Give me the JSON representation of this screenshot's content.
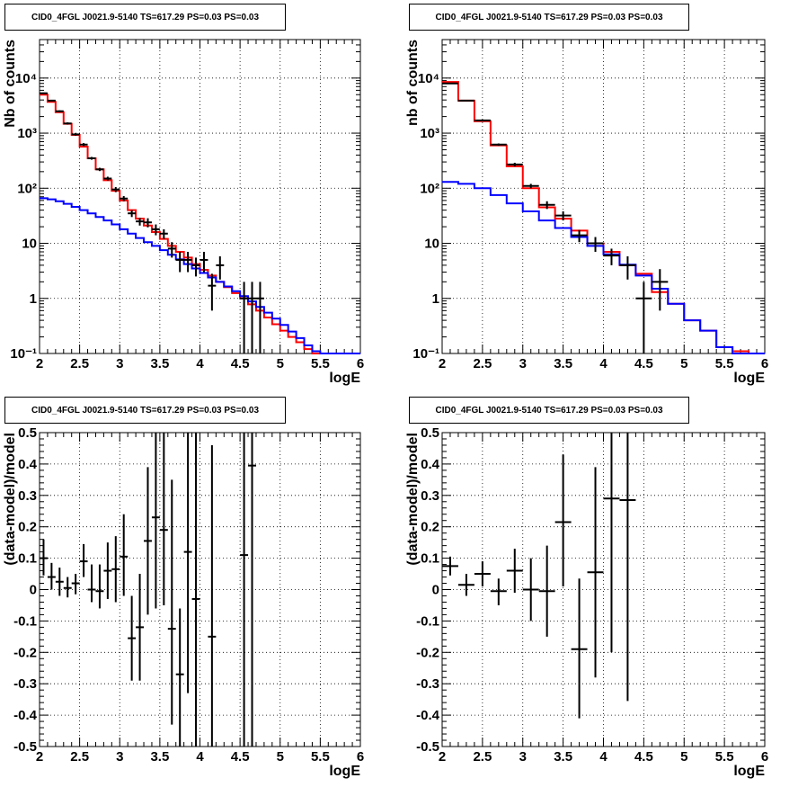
{
  "chart_data": [
    {
      "type": "line",
      "title": "CID0_4FGL J0021.9-5140 TS=617.29 PS=0.03 PS=0.03",
      "xlabel": "logE",
      "ylabel": "Nb of counts",
      "xlim": [
        2,
        6
      ],
      "ylim": [
        0.1,
        50000
      ],
      "yscale": "log",
      "grid": true,
      "x_ticks": [
        "2",
        "2.5",
        "3",
        "3.5",
        "4",
        "4.5",
        "5",
        "5.5",
        "6"
      ],
      "y_ticks": [
        "10⁻¹",
        "1",
        "10",
        "10²",
        "10³",
        "10⁴"
      ],
      "series": [
        {
          "color": "#ff0000",
          "style": "step",
          "bin_width": 0.1,
          "x": [
            2.0,
            2.1,
            2.2,
            2.3,
            2.4,
            2.5,
            2.6,
            2.7,
            2.8,
            2.9,
            3.0,
            3.1,
            3.2,
            3.3,
            3.4,
            3.5,
            3.6,
            3.7,
            3.8,
            3.9,
            4.0,
            4.1,
            4.2,
            4.3,
            4.4,
            4.5,
            4.6,
            4.7,
            4.8,
            4.9,
            5.0,
            5.1,
            5.2,
            5.3,
            5.4,
            5.5,
            5.6,
            5.7,
            5.8,
            5.9
          ],
          "y": [
            5000,
            3700,
            2400,
            1480,
            930,
            570,
            350,
            220,
            140,
            90,
            60,
            40,
            28,
            21,
            16,
            12,
            9,
            7,
            5.5,
            4.2,
            3.3,
            2.6,
            2.0,
            1.6,
            1.25,
            1.0,
            0.78,
            0.6,
            0.45,
            0.34,
            0.26,
            0.2,
            0.16,
            0.12,
            0.1,
            0.1,
            0.1,
            0.1,
            0.1,
            0.1
          ]
        },
        {
          "color": "#0000ff",
          "style": "step",
          "bin_width": 0.1,
          "x": [
            2.0,
            2.1,
            2.2,
            2.3,
            2.4,
            2.5,
            2.6,
            2.7,
            2.8,
            2.9,
            3.0,
            3.1,
            3.2,
            3.3,
            3.4,
            3.5,
            3.6,
            3.7,
            3.8,
            3.9,
            4.0,
            4.1,
            4.2,
            4.3,
            4.4,
            4.5,
            4.6,
            4.7,
            4.8,
            4.9,
            5.0,
            5.1,
            5.2,
            5.3,
            5.4,
            5.5,
            5.6,
            5.7,
            5.8,
            5.9
          ],
          "y": [
            66,
            63,
            58,
            52,
            46,
            40,
            35,
            30,
            26,
            22,
            18,
            15,
            12.5,
            10.5,
            9,
            7.5,
            6.2,
            5.1,
            4.2,
            3.5,
            2.9,
            2.4,
            2.0,
            1.65,
            1.35,
            1.1,
            0.88,
            0.7,
            0.55,
            0.43,
            0.33,
            0.25,
            0.19,
            0.14,
            0.11,
            0.1,
            0.1,
            0.1,
            0.1,
            0.1
          ]
        }
      ],
      "points": {
        "color": "#000000",
        "xerr": 0.05,
        "x": [
          2.05,
          2.15,
          2.25,
          2.35,
          2.45,
          2.55,
          2.65,
          2.75,
          2.85,
          2.95,
          3.05,
          3.15,
          3.25,
          3.35,
          3.45,
          3.55,
          3.65,
          3.75,
          3.85,
          3.95,
          4.05,
          4.15,
          4.25,
          4.55,
          4.65,
          4.75
        ],
        "y": [
          5300,
          3900,
          2500,
          1500,
          950,
          620,
          350,
          220,
          150,
          95,
          65,
          35,
          25,
          24,
          18,
          15,
          8,
          5,
          5,
          4,
          5,
          1.7,
          4,
          1,
          1,
          1
        ],
        "ylo": [
          5150,
          3780,
          2400,
          1430,
          900,
          580,
          330,
          205,
          138,
          85,
          58,
          30,
          21,
          19.5,
          14,
          12,
          5.5,
          3,
          3,
          2.5,
          3,
          0.6,
          2.2,
          0.1,
          0.1,
          0.1
        ],
        "yhi": [
          5450,
          4020,
          2600,
          1570,
          1000,
          660,
          370,
          235,
          162,
          105,
          72,
          40,
          29,
          28.5,
          22,
          18,
          10.5,
          7,
          7,
          5.5,
          7,
          2.8,
          5.8,
          2.0,
          2.0,
          2.0
        ]
      }
    },
    {
      "type": "line",
      "title": "CID0_4FGL J0021.9-5140 TS=617.29 PS=0.03 PS=0.03",
      "xlabel": "logE",
      "ylabel": "nb of counts",
      "xlim": [
        2,
        6
      ],
      "ylim": [
        0.1,
        50000
      ],
      "yscale": "log",
      "grid": true,
      "x_ticks": [
        "2",
        "2.5",
        "3",
        "3.5",
        "4",
        "4.5",
        "5",
        "5.5",
        "6"
      ],
      "y_ticks": [
        "10⁻¹",
        "1",
        "10",
        "10²",
        "10³",
        "10⁴"
      ],
      "series": [
        {
          "color": "#ff0000",
          "style": "step",
          "bin_width": 0.2,
          "x": [
            2.0,
            2.2,
            2.4,
            2.6,
            2.8,
            3.0,
            3.2,
            3.4,
            3.6,
            3.8,
            4.0,
            4.2,
            4.4,
            4.6,
            4.8,
            5.0,
            5.2,
            5.4,
            5.6,
            5.8
          ],
          "y": [
            8500,
            3900,
            1650,
            600,
            250,
            100,
            45,
            28,
            17,
            10,
            7,
            4,
            2.8,
            1.3,
            0.8,
            0.4,
            0.26,
            0.13,
            0.11,
            0.1
          ]
        },
        {
          "color": "#0000ff",
          "style": "step",
          "bin_width": 0.2,
          "x": [
            2.0,
            2.2,
            2.4,
            2.6,
            2.8,
            3.0,
            3.2,
            3.4,
            3.6,
            3.8,
            4.0,
            4.2,
            4.4,
            4.6,
            4.8,
            5.0,
            5.2,
            5.4,
            5.6,
            5.8
          ],
          "y": [
            130,
            120,
            100,
            75,
            53,
            38,
            26,
            19,
            13,
            9,
            6.3,
            4.1,
            2.6,
            1.5,
            0.8,
            0.4,
            0.26,
            0.13,
            0.1,
            0.1
          ]
        }
      ],
      "points": {
        "color": "#000000",
        "xerr": 0.1,
        "x": [
          2.1,
          2.3,
          2.5,
          2.7,
          2.9,
          3.1,
          3.3,
          3.5,
          3.7,
          3.9,
          4.1,
          4.3,
          4.5,
          4.7
        ],
        "y": [
          8000,
          3900,
          1700,
          620,
          270,
          110,
          50,
          32,
          14,
          10,
          6,
          4,
          1,
          2
        ],
        "ylo": [
          7800,
          3800,
          1630,
          590,
          250,
          100,
          42,
          26,
          10.5,
          7,
          4,
          2.2,
          0.1,
          0.6
        ],
        "yhi": [
          8200,
          4000,
          1770,
          650,
          290,
          120,
          58,
          38,
          17.5,
          13,
          8,
          5.8,
          2.0,
          3.4
        ]
      }
    },
    {
      "type": "scatter",
      "title": "CID0_4FGL J0021.9-5140 TS=617.29 PS=0.03 PS=0.03",
      "xlabel": "logE",
      "ylabel": "(data-model)/model",
      "xlim": [
        2,
        6
      ],
      "ylim": [
        -0.5,
        0.5
      ],
      "grid": true,
      "x_ticks": [
        "2",
        "2.5",
        "3",
        "3.5",
        "4",
        "4.5",
        "5",
        "5.5",
        "6"
      ],
      "y_ticks": [
        "-0.5",
        "-0.4",
        "-0.3",
        "-0.2",
        "-0.1",
        "0",
        "0.1",
        "0.2",
        "0.3",
        "0.4",
        "0.5"
      ],
      "points": {
        "color": "#000000",
        "xerr": 0.05,
        "x": [
          2.05,
          2.15,
          2.25,
          2.35,
          2.45,
          2.55,
          2.65,
          2.75,
          2.85,
          2.95,
          3.05,
          3.15,
          3.25,
          3.35,
          3.45,
          3.55,
          3.65,
          3.75,
          3.85,
          3.95,
          4.15,
          4.55,
          4.65
        ],
        "y": [
          0.1,
          0.04,
          0.025,
          0.005,
          0.02,
          0.09,
          0.0,
          -0.005,
          0.06,
          0.065,
          0.105,
          -0.155,
          -0.12,
          0.155,
          0.23,
          0.19,
          -0.125,
          -0.27,
          0.12,
          -0.03,
          -0.15,
          0.11,
          0.395
        ],
        "ylo": [
          0.045,
          0.0,
          -0.02,
          -0.025,
          -0.015,
          0.04,
          -0.04,
          -0.06,
          -0.03,
          -0.04,
          -0.02,
          -0.29,
          -0.29,
          -0.08,
          -0.06,
          -0.05,
          -0.43,
          -0.5,
          -0.33,
          -0.5,
          -0.5,
          -0.5,
          -0.5
        ],
        "yhi": [
          0.16,
          0.085,
          0.07,
          0.04,
          0.05,
          0.145,
          0.08,
          0.08,
          0.15,
          0.17,
          0.24,
          -0.02,
          0.05,
          0.39,
          0.5,
          0.5,
          0.35,
          -0.06,
          0.5,
          0.5,
          0.46,
          0.5,
          0.5
        ]
      }
    },
    {
      "type": "scatter",
      "title": "CID0_4FGL J0021.9-5140 TS=617.29 PS=0.03 PS=0.03",
      "xlabel": "logE",
      "ylabel": "(data-model)/model",
      "xlim": [
        2,
        6
      ],
      "ylim": [
        -0.5,
        0.5
      ],
      "grid": true,
      "x_ticks": [
        "2",
        "2.5",
        "3",
        "3.5",
        "4",
        "4.5",
        "5",
        "5.5",
        "6"
      ],
      "y_ticks": [
        "-0.5",
        "-0.4",
        "-0.3",
        "-0.2",
        "-0.1",
        "0",
        "0.1",
        "0.2",
        "0.3",
        "0.4",
        "0.5"
      ],
      "points": {
        "color": "#000000",
        "xerr": 0.1,
        "x": [
          2.1,
          2.3,
          2.5,
          2.7,
          2.9,
          3.1,
          3.3,
          3.5,
          3.7,
          3.9,
          4.1,
          4.3
        ],
        "y": [
          0.075,
          0.015,
          0.05,
          -0.005,
          0.06,
          0.0,
          -0.005,
          0.215,
          -0.19,
          0.055,
          0.29,
          0.285
        ],
        "ylo": [
          0.045,
          -0.02,
          0.01,
          -0.05,
          -0.01,
          -0.1,
          -0.15,
          0.01,
          -0.41,
          -0.28,
          -0.2,
          -0.355
        ],
        "yhi": [
          0.105,
          0.05,
          0.09,
          0.035,
          0.13,
          0.1,
          0.14,
          0.43,
          0.035,
          0.39,
          0.5,
          0.5
        ]
      }
    }
  ]
}
